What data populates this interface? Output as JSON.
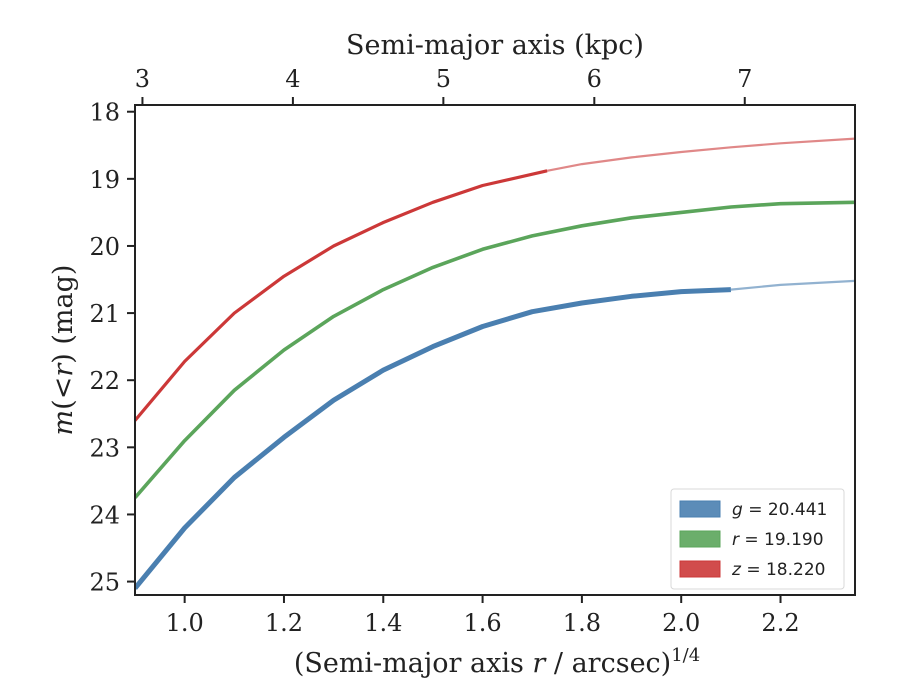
{
  "chart_data": {
    "type": "line",
    "xlabel": "(Semi-major axis ",
    "xlabel_var": "r",
    "xlabel_tail": " / arcsec)",
    "xlabel_sup": "1/4",
    "ylabel_pre": "m",
    "ylabel_mid": "(<",
    "ylabel_var": "r",
    "ylabel_post": ") (mag)",
    "top_xlabel": "Semi-major axis (kpc)",
    "xlim": [
      0.9,
      2.35
    ],
    "ylim": [
      25.2,
      17.9
    ],
    "y_inverted": true,
    "x_ticks": [
      "1.0",
      "1.2",
      "1.4",
      "1.6",
      "1.8",
      "2.0",
      "2.2"
    ],
    "y_ticks": [
      "18",
      "19",
      "20",
      "21",
      "22",
      "23",
      "24",
      "25"
    ],
    "top_ticks": [
      "3",
      "4",
      "5",
      "6",
      "7"
    ],
    "top_tick_x_equivalent": [
      0.915,
      1.218,
      1.521,
      1.825,
      2.128
    ],
    "grid": false,
    "legend_position": "lower-right",
    "series": [
      {
        "name": "g = 20.441",
        "var": "g",
        "value": "20.441",
        "color": "#4a7fb0",
        "solid": [
          [
            0.9,
            25.1
          ],
          [
            1.0,
            24.2
          ],
          [
            1.1,
            23.45
          ],
          [
            1.2,
            22.85
          ],
          [
            1.3,
            22.3
          ],
          [
            1.4,
            21.85
          ],
          [
            1.5,
            21.5
          ],
          [
            1.6,
            21.2
          ],
          [
            1.7,
            20.98
          ],
          [
            1.8,
            20.85
          ],
          [
            1.9,
            20.75
          ],
          [
            2.0,
            20.68
          ],
          [
            2.1,
            20.65
          ]
        ],
        "extrapolated": [
          [
            2.1,
            20.65
          ],
          [
            2.2,
            20.58
          ],
          [
            2.35,
            20.52
          ]
        ]
      },
      {
        "name": "r = 19.190",
        "var": "r",
        "value": "19.190",
        "color": "#5ba55b",
        "solid": [
          [
            0.9,
            23.75
          ],
          [
            1.0,
            22.9
          ],
          [
            1.1,
            22.15
          ],
          [
            1.2,
            21.55
          ],
          [
            1.3,
            21.05
          ],
          [
            1.4,
            20.65
          ],
          [
            1.5,
            20.32
          ],
          [
            1.6,
            20.05
          ],
          [
            1.7,
            19.85
          ],
          [
            1.8,
            19.7
          ],
          [
            1.9,
            19.58
          ],
          [
            2.0,
            19.5
          ],
          [
            2.1,
            19.42
          ],
          [
            2.2,
            19.37
          ],
          [
            2.35,
            19.35
          ]
        ],
        "extrapolated": []
      },
      {
        "name": "z = 18.220",
        "var": "z",
        "value": "18.220",
        "color": "#cc3838",
        "solid": [
          [
            0.9,
            22.6
          ],
          [
            1.0,
            21.72
          ],
          [
            1.1,
            21.0
          ],
          [
            1.2,
            20.45
          ],
          [
            1.3,
            20.0
          ],
          [
            1.4,
            19.65
          ],
          [
            1.5,
            19.35
          ],
          [
            1.6,
            19.1
          ],
          [
            1.73,
            18.88
          ]
        ],
        "extrapolated": [
          [
            1.73,
            18.88
          ],
          [
            1.8,
            18.78
          ],
          [
            1.9,
            18.68
          ],
          [
            2.0,
            18.6
          ],
          [
            2.1,
            18.53
          ],
          [
            2.2,
            18.47
          ],
          [
            2.35,
            18.4
          ]
        ]
      }
    ]
  }
}
